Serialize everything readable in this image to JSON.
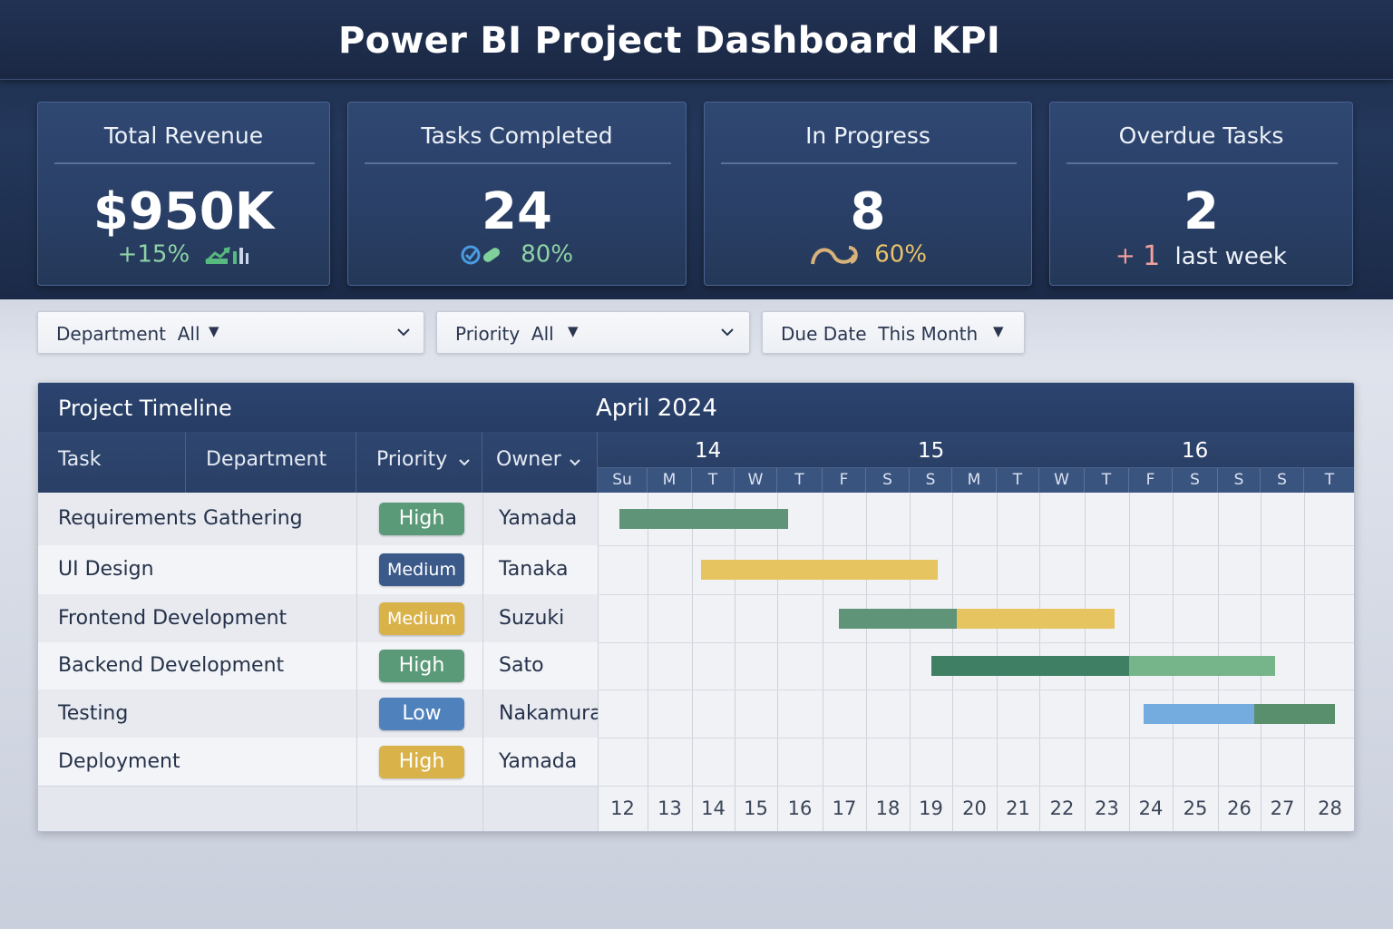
{
  "title": "Power BI Project Dashboard KPI",
  "kpis": [
    {
      "label": "Total Revenue",
      "value": "$950K",
      "sub": "+15%",
      "sub_icon": "bar-trend-icon"
    },
    {
      "label": "Tasks Completed",
      "value": "24",
      "sub": "80%",
      "sub_icon": "check-badge-icon"
    },
    {
      "label": "In Progress",
      "value": "8",
      "sub": "60%",
      "sub_icon": "loop-arrow-icon"
    },
    {
      "label": "Overdue Tasks",
      "value": "2",
      "sub_prefix": "+",
      "sub_number": "1",
      "sub": "last week"
    }
  ],
  "filters": [
    {
      "label": "Department",
      "value": "All"
    },
    {
      "label": "Priority",
      "value": "All"
    },
    {
      "label": "Due Date",
      "value": "This Month"
    }
  ],
  "panel": {
    "title": "Project Timeline",
    "month": "April 2024",
    "columns": {
      "task": "Task",
      "department": "Department",
      "priority": "Priority",
      "owner": "Owner"
    },
    "weeks": [
      "14",
      "15",
      "16"
    ],
    "days_of_week": [
      "Su",
      "M",
      "T",
      "W",
      "T",
      "F",
      "S",
      "S",
      "M",
      "T",
      "W",
      "T",
      "F",
      "S",
      "S",
      "S",
      "T"
    ],
    "day_numbers": [
      "12",
      "13",
      "14",
      "15",
      "16",
      "17",
      "18",
      "19",
      "20",
      "21",
      "22",
      "23",
      "24",
      "25",
      "26",
      "27",
      "28"
    ]
  },
  "tasks": [
    {
      "name": "Requirements Gathering",
      "priority": "High",
      "owner": "Yamada"
    },
    {
      "name": "UI Design",
      "priority": "Medium",
      "owner": "Tanaka"
    },
    {
      "name": "Frontend Development",
      "priority": "Medium",
      "owner": "Suzuki"
    },
    {
      "name": "Backend Development",
      "priority": "High",
      "owner": "Sato"
    },
    {
      "name": "Testing",
      "priority": "Low",
      "owner": "Nakamura"
    },
    {
      "name": "Deployment",
      "priority": "High",
      "owner": "Yamada"
    }
  ],
  "colors": {
    "header_bg": "#24385c",
    "kpi_green": "#7fd09a",
    "kpi_gold": "#e9c46a",
    "overdue_pink": "#f2a0a0",
    "badge_green": "#5b9a78",
    "badge_navy": "#3b5a8a",
    "badge_gold": "#d9b24a",
    "badge_blue": "#4f82bd",
    "bar_green": "#5f9478",
    "bar_gold": "#e6c45f",
    "bar_lightgreen": "#76b48a",
    "bar_blue": "#74ace0"
  }
}
